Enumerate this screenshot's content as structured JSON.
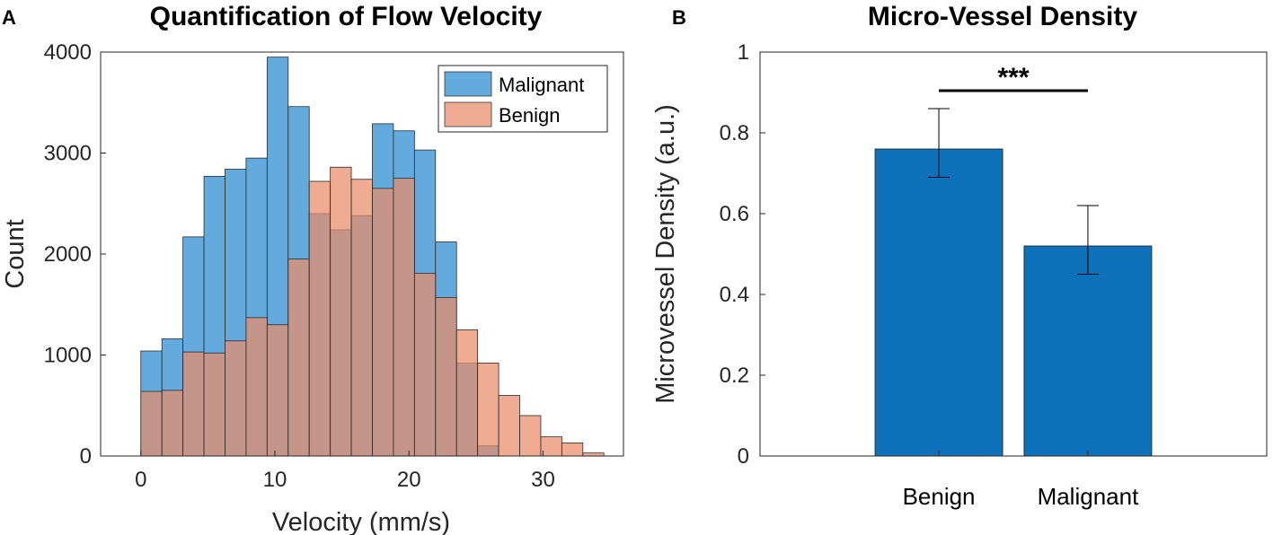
{
  "chart_data": [
    {
      "panel": "A",
      "type": "bar",
      "subtype": "overlapping histogram",
      "title": "Quantification of Flow Velocity",
      "xlabel": "Velocity (mm/s)",
      "ylabel": "Count",
      "xlim": [
        -3,
        36
      ],
      "ylim": [
        0,
        4000
      ],
      "xticks": [
        0,
        10,
        20,
        30
      ],
      "yticks": [
        0,
        1000,
        2000,
        3000,
        4000
      ],
      "grid": false,
      "legend": {
        "position": "top-right",
        "entries": [
          "Malignant",
          "Benign"
        ]
      },
      "bin_edges": [
        0,
        1.57,
        3.14,
        4.71,
        6.28,
        7.85,
        9.42,
        10.99,
        12.56,
        14.13,
        15.7,
        17.27,
        18.84,
        20.41,
        21.98,
        23.55,
        25.12,
        26.69,
        28.26,
        29.83,
        31.4,
        32.97,
        34.54
      ],
      "series": [
        {
          "name": "Malignant",
          "color": "#4f9fd8",
          "values": [
            1040,
            1160,
            2170,
            2770,
            2840,
            2950,
            3950,
            3460,
            2400,
            2240,
            2380,
            3290,
            3220,
            3030,
            2120,
            920,
            100,
            0,
            0,
            0,
            0,
            0
          ]
        },
        {
          "name": "Benign",
          "color": "#ea8c69",
          "values": [
            640,
            650,
            1030,
            1020,
            1140,
            1370,
            1300,
            1950,
            2720,
            2860,
            2740,
            2650,
            2750,
            1810,
            1570,
            1250,
            920,
            600,
            400,
            190,
            130,
            30
          ]
        }
      ]
    },
    {
      "panel": "B",
      "type": "bar",
      "title": "Micro-Vessel Density",
      "xlabel": "",
      "ylabel": "Microvessel Density (a.u.)",
      "ylim": [
        0,
        1
      ],
      "yticks": [
        "0",
        "0.2",
        "0.4",
        "0.6",
        "0.8",
        "1"
      ],
      "grid": false,
      "color": "#0d72ba",
      "categories": [
        "Benign",
        "Malignant"
      ],
      "values": [
        0.76,
        0.52
      ],
      "error_lower": [
        0.69,
        0.45
      ],
      "error_upper": [
        0.86,
        0.62
      ],
      "significance": {
        "between": [
          "Benign",
          "Malignant"
        ],
        "label": "***"
      }
    }
  ]
}
